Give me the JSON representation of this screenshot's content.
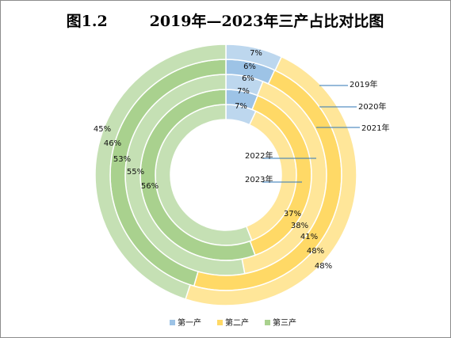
{
  "chart_data": {
    "type": "pie",
    "subtype": "doughnut",
    "title": "图1.2        2019年—2023年三产占比对比图",
    "categories": [
      "第一产",
      "第二产",
      "第三产"
    ],
    "colors": [
      "#9DC3E6",
      "#FFD966",
      "#A9D18E"
    ],
    "rings": [
      {
        "year": "2019年",
        "values": [
          7,
          37,
          56
        ]
      },
      {
        "year": "2020年",
        "values": [
          6,
          38,
          55
        ]
      },
      {
        "year": "2021年",
        "values": [
          6,
          41,
          53
        ]
      },
      {
        "year": "2022年",
        "values": [
          7,
          48,
          46
        ]
      },
      {
        "year": "2023年",
        "values": [
          7,
          48,
          45
        ]
      }
    ],
    "label_order": {
      "primary": [
        "7%",
        "6%",
        "6%",
        "7%",
        "7%"
      ],
      "secondary": [
        "37%",
        "38%",
        "41%",
        "48%",
        "48%"
      ],
      "tertiary": [
        "45%",
        "46%",
        "53%",
        "55%",
        "56%"
      ]
    },
    "legend_position": "bottom"
  }
}
